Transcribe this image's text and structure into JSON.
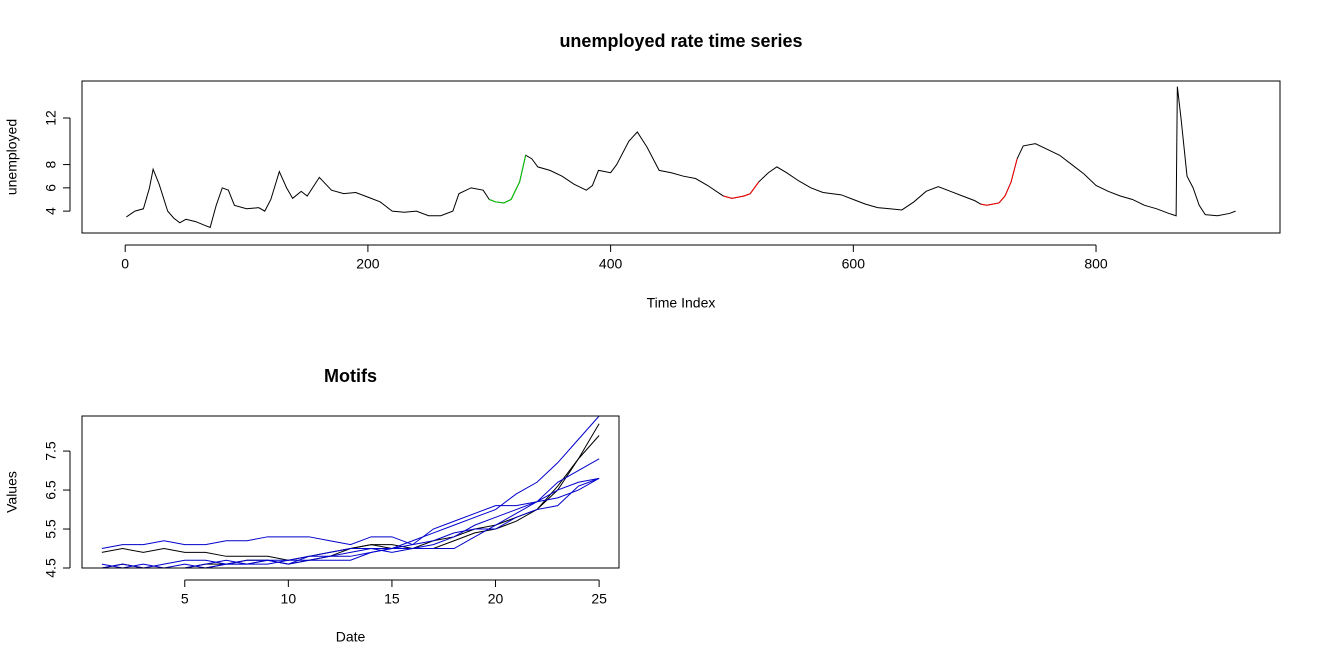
{
  "chart_data": [
    {
      "type": "line",
      "title": "unemployed rate time series",
      "xlabel": "Time Index",
      "ylabel": "unemployed",
      "xlim": [
        -35.6,
        951.6
      ],
      "ylim": [
        2.12,
        15.18
      ],
      "xticks": [
        0,
        200,
        400,
        600,
        800
      ],
      "yticks": [
        4,
        6,
        8,
        12
      ],
      "series": [
        {
          "color": "#000000",
          "x": [
            1,
            8,
            15,
            20,
            23,
            28,
            35,
            40,
            45,
            50,
            58,
            65,
            70,
            75,
            80,
            85,
            90,
            100,
            110,
            115,
            120,
            127,
            133,
            138,
            145,
            150,
            160,
            170,
            180,
            190,
            200,
            210,
            220,
            230,
            240,
            250,
            260,
            270,
            275,
            285,
            295,
            300,
            305,
            312,
            318,
            325,
            330,
            335,
            340,
            350,
            360,
            370,
            380,
            385,
            390,
            400,
            405,
            415,
            422,
            430,
            440,
            450,
            460,
            470,
            480,
            490,
            493,
            500,
            510,
            515,
            522,
            530,
            537,
            545,
            555,
            565,
            575,
            590,
            600,
            610,
            620,
            630,
            640,
            650,
            660,
            670,
            680,
            690,
            700,
            705,
            710,
            720,
            725,
            730,
            735,
            740,
            750,
            760,
            770,
            780,
            790,
            800,
            810,
            820,
            830,
            840,
            850,
            860,
            866,
            867,
            870,
            875,
            880,
            885,
            890,
            900,
            910,
            915
          ],
          "values": [
            3.5,
            4.0,
            4.2,
            6.0,
            7.6,
            6.3,
            4.0,
            3.4,
            3.0,
            3.3,
            3.1,
            2.8,
            2.6,
            4.5,
            6.0,
            5.8,
            4.5,
            4.2,
            4.3,
            4.0,
            5.0,
            7.4,
            6.0,
            5.1,
            5.7,
            5.3,
            6.9,
            5.8,
            5.5,
            5.6,
            5.2,
            4.8,
            4.0,
            3.9,
            4.0,
            3.6,
            3.6,
            4.0,
            5.5,
            6.0,
            5.8,
            5.0,
            4.8,
            4.7,
            5.0,
            6.5,
            8.8,
            8.5,
            7.8,
            7.5,
            7.0,
            6.3,
            5.8,
            6.2,
            7.5,
            7.3,
            8.0,
            10.0,
            10.8,
            9.5,
            7.5,
            7.3,
            7.0,
            6.8,
            6.2,
            5.5,
            5.3,
            5.1,
            5.3,
            5.5,
            6.5,
            7.3,
            7.8,
            7.3,
            6.6,
            6.0,
            5.6,
            5.4,
            5.0,
            4.6,
            4.3,
            4.2,
            4.1,
            4.8,
            5.7,
            6.1,
            5.7,
            5.3,
            4.9,
            4.6,
            4.5,
            4.7,
            5.3,
            6.5,
            8.5,
            9.6,
            9.8,
            9.3,
            8.8,
            8.0,
            7.2,
            6.2,
            5.7,
            5.3,
            5.0,
            4.5,
            4.2,
            3.8,
            3.6,
            14.7,
            12.0,
            7.0,
            6.0,
            4.5,
            3.7,
            3.6,
            3.8,
            4.0
          ]
        },
        {
          "color": "#00cc00",
          "x": [
            300,
            305,
            312,
            318,
            325,
            330
          ],
          "values": [
            5.0,
            4.8,
            4.7,
            5.0,
            6.5,
            8.8
          ]
        },
        {
          "color": "#ff0000",
          "x": [
            493,
            500,
            510,
            515,
            522
          ],
          "values": [
            5.3,
            5.1,
            5.3,
            5.5,
            6.5
          ]
        },
        {
          "color": "#ff0000",
          "x": [
            705,
            710,
            720,
            725,
            730,
            735
          ],
          "values": [
            4.6,
            4.5,
            4.7,
            5.3,
            6.5,
            8.5
          ]
        }
      ]
    },
    {
      "type": "line",
      "title": "Motifs",
      "xlabel": "Date",
      "ylabel": "Values",
      "xlim": [
        0.04,
        25.96
      ],
      "ylim": [
        4.5,
        8.4
      ],
      "xticks": [
        5,
        10,
        15,
        20,
        25
      ],
      "yticks": [
        4.5,
        5.5,
        6.5,
        7.5
      ],
      "x": [
        1,
        2,
        3,
        4,
        5,
        6,
        7,
        8,
        9,
        10,
        11,
        12,
        13,
        14,
        15,
        16,
        17,
        18,
        19,
        20,
        21,
        22,
        23,
        24,
        25
      ],
      "series": [
        {
          "color": "#000000",
          "values": [
            4.9,
            5.0,
            4.9,
            5.0,
            4.9,
            4.9,
            4.8,
            4.8,
            4.8,
            4.7,
            4.8,
            4.9,
            5.0,
            5.1,
            5.0,
            5.0,
            5.0,
            5.2,
            5.4,
            5.5,
            5.7,
            6.0,
            6.6,
            7.3,
            7.9
          ]
        },
        {
          "color": "#000000",
          "values": [
            4.5,
            4.6,
            4.5,
            4.5,
            4.5,
            4.6,
            4.6,
            4.7,
            4.7,
            4.6,
            4.7,
            4.8,
            5.0,
            5.1,
            5.1,
            5.0,
            5.2,
            5.3,
            5.5,
            5.6,
            5.8,
            6.0,
            6.5,
            7.3,
            8.2
          ]
        },
        {
          "color": "#0000cc",
          "values": [
            5.0,
            5.1,
            5.1,
            5.2,
            5.1,
            5.1,
            5.2,
            5.2,
            5.3,
            5.3,
            5.3,
            5.2,
            5.1,
            5.3,
            5.3,
            5.1,
            5.5,
            5.7,
            5.9,
            6.1,
            6.1,
            6.2,
            6.3,
            6.5,
            6.8
          ]
        },
        {
          "color": "#0000cc",
          "values": [
            4.6,
            4.5,
            4.6,
            4.5,
            4.5,
            4.6,
            4.7,
            4.6,
            4.7,
            4.7,
            4.8,
            4.8,
            4.9,
            5.0,
            5.0,
            5.2,
            5.4,
            5.6,
            5.8,
            6.0,
            6.4,
            6.7,
            7.2,
            7.8,
            8.4
          ]
        },
        {
          "color": "#0000cc",
          "values": [
            4.5,
            4.6,
            4.5,
            4.5,
            4.6,
            4.5,
            4.6,
            4.7,
            4.7,
            4.6,
            4.7,
            4.7,
            4.7,
            4.9,
            5.0,
            5.1,
            5.2,
            5.4,
            5.5,
            5.5,
            5.8,
            6.0,
            6.1,
            6.6,
            6.8
          ]
        },
        {
          "color": "#0000cc",
          "values": [
            4.5,
            4.5,
            4.5,
            4.6,
            4.7,
            4.7,
            4.6,
            4.6,
            4.7,
            4.6,
            4.8,
            4.9,
            5.0,
            5.0,
            4.9,
            5.0,
            5.1,
            5.3,
            5.6,
            5.8,
            6.0,
            6.2,
            6.7,
            7.0,
            7.3
          ]
        },
        {
          "color": "#0000cc",
          "values": [
            4.5,
            4.5,
            4.5,
            4.5,
            4.5,
            4.5,
            4.6,
            4.6,
            4.6,
            4.7,
            4.7,
            4.8,
            4.8,
            4.9,
            5.0,
            5.0,
            5.0,
            5.0,
            5.3,
            5.6,
            5.9,
            6.2,
            6.5,
            6.7,
            6.8
          ]
        }
      ]
    }
  ]
}
